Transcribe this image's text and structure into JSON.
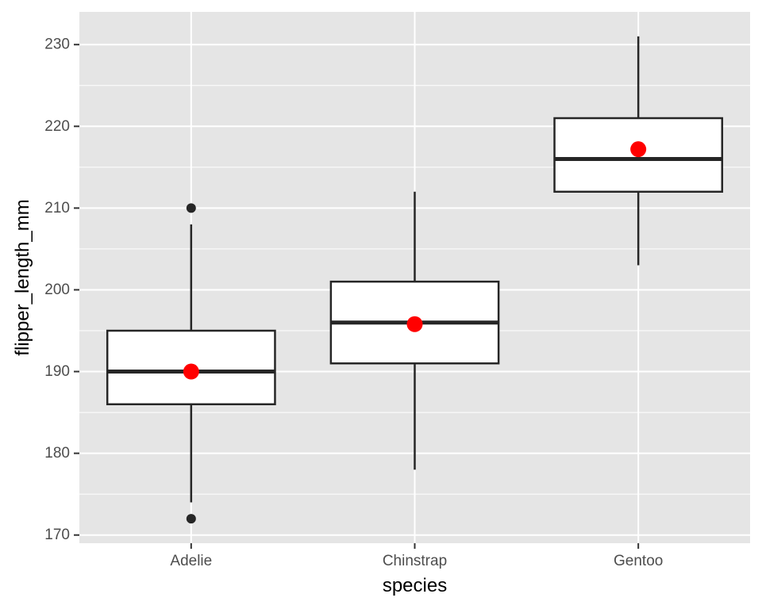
{
  "chart_data": {
    "type": "boxplot",
    "xlabel": "species",
    "ylabel": "flipper_length_mm",
    "categories": [
      "Adelie",
      "Chinstrap",
      "Gentoo"
    ],
    "ylim": [
      169,
      234
    ],
    "yticks": [
      170,
      180,
      190,
      200,
      210,
      220,
      230
    ],
    "grid": true,
    "legend": "none",
    "boxes": [
      {
        "category": "Adelie",
        "whisker_low": 174,
        "q1": 186,
        "median": 190,
        "q3": 195,
        "whisker_high": 208,
        "mean": 190.0,
        "outliers": [
          172,
          210
        ]
      },
      {
        "category": "Chinstrap",
        "whisker_low": 178,
        "q1": 191,
        "median": 196,
        "q3": 201,
        "whisker_high": 212,
        "mean": 195.8,
        "outliers": []
      },
      {
        "category": "Gentoo",
        "whisker_low": 203,
        "q1": 212,
        "median": 216,
        "q3": 221,
        "whisker_high": 231,
        "mean": 217.2,
        "outliers": []
      }
    ],
    "colors": {
      "panel": "#e5e5e5",
      "grid": "#ffffff",
      "box_fill": "#ffffff",
      "box_stroke": "#262626",
      "mean_point": "#ff0000",
      "outlier": "#262626",
      "tick_text": "#4d4d4d",
      "axis_title": "#000000"
    }
  }
}
